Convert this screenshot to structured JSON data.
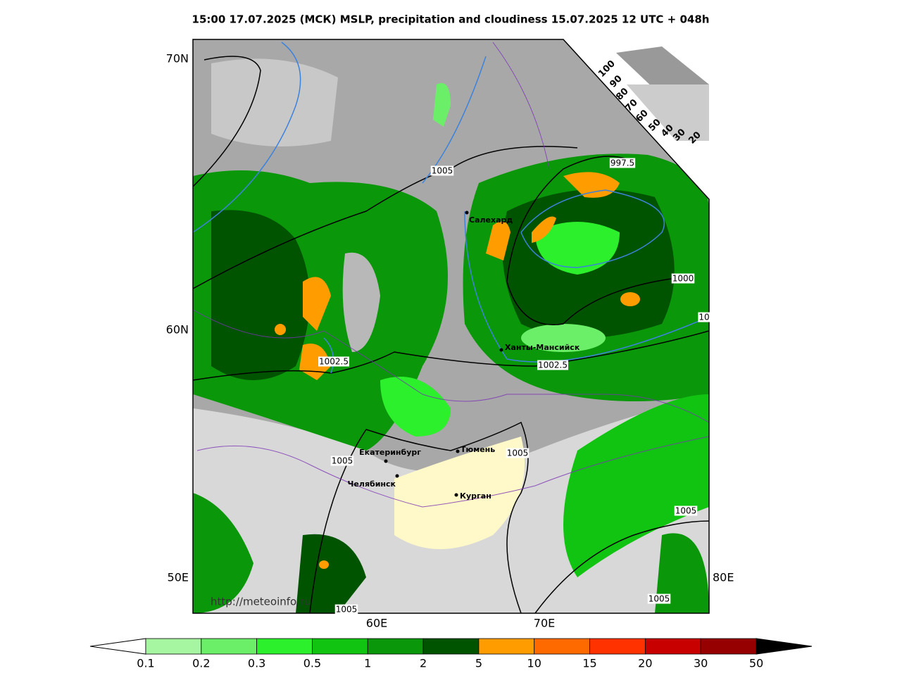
{
  "title": "15:00 17.07.2025 (МСК) MSLP, precipitation and cloudiness 15.07.2025 12 UTC + 048h",
  "axis_labels": {
    "left": [
      "70N",
      "60N",
      "50E"
    ],
    "bottom": [
      "60E",
      "70E"
    ],
    "right": [
      "80E"
    ]
  },
  "cities": [
    "Салехард",
    "Ханты-Мансийск",
    "Екатеринбург",
    "Тюмень",
    "Челябинск",
    "Курган"
  ],
  "isobar_labels": [
    "1005",
    "997.5",
    "1000",
    "10",
    "1002.5",
    "1002.5",
    "1005",
    "1005",
    "1005",
    "1005",
    "1005"
  ],
  "cloud_scale": [
    "100",
    "90",
    "80",
    "70",
    "60",
    "50",
    "40",
    "30",
    "20"
  ],
  "watermark": "http://meteoinfo.ru",
  "colorbar": {
    "ticks": [
      0.1,
      0.2,
      0.3,
      0.5,
      1,
      2,
      5,
      10,
      15,
      20,
      30,
      50
    ],
    "colors": [
      "#a6f5a0",
      "#6cef68",
      "#2cf02c",
      "#12c412",
      "#0a980a",
      "#005400",
      "#ff9c00",
      "#ff6a00",
      "#ff3200",
      "#c80000",
      "#960000"
    ],
    "under": "#ffffff",
    "over": "#000000"
  }
}
